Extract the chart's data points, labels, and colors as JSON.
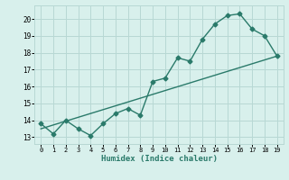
{
  "x_data": [
    0,
    1,
    2,
    3,
    4,
    5,
    6,
    7,
    8,
    9,
    10,
    11,
    12,
    13,
    14,
    15,
    16,
    17,
    18,
    19
  ],
  "y_jagged": [
    13.8,
    13.2,
    14.0,
    13.5,
    13.1,
    13.8,
    14.4,
    14.7,
    14.3,
    16.3,
    16.5,
    17.7,
    17.5,
    18.8,
    19.7,
    20.2,
    20.3,
    19.4,
    19.0,
    17.8
  ],
  "trend_start": 13.5,
  "trend_end": 17.8,
  "line_color": "#2a7a6a",
  "bg_color": "#d8f0ec",
  "grid_color": "#b8d8d4",
  "xlabel": "Humidex (Indice chaleur)",
  "ylabel_ticks": [
    13,
    14,
    15,
    16,
    17,
    18,
    19,
    20
  ],
  "xlim": [
    -0.5,
    19.5
  ],
  "ylim": [
    12.6,
    20.8
  ],
  "marker": "D",
  "markersize": 2.5,
  "linewidth": 1.0
}
